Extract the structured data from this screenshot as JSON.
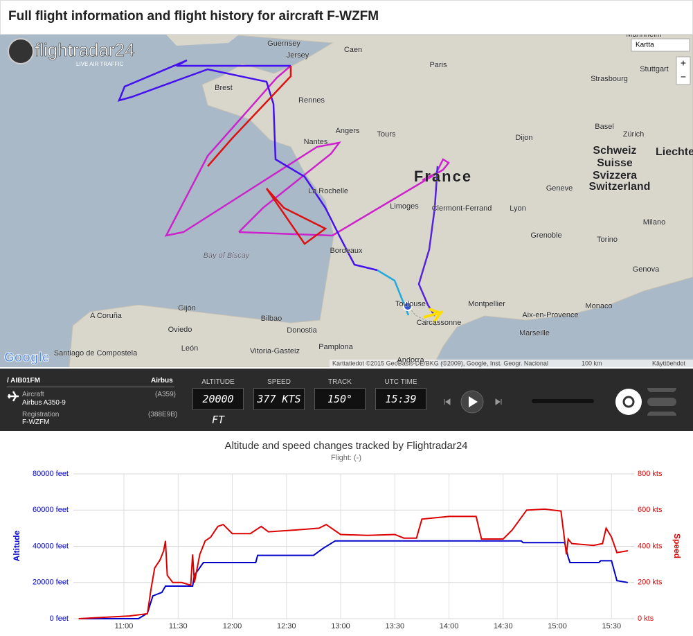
{
  "header": {
    "title": "Full flight information and flight history for aircraft F-WZFM"
  },
  "map": {
    "logo": "flightradar24",
    "logo_tagline": "LIVE AIR TRAFFIC",
    "map_type": "Kartta",
    "zoom_in": "+",
    "zoom_out": "−",
    "google": "Google",
    "attribution": "Karttatiedot ©2015 GeoBasis-DE/BKG (©2009), Google, Inst. Geogr. Nacional",
    "scale": "100 km",
    "terms": "Käyttöehdot",
    "labels": [
      "Guernsey",
      "Jersey",
      "Caen",
      "Paris",
      "Stuttgart",
      "Strasbourg",
      "Brest",
      "Rennes",
      "Angers",
      "Nantes",
      "Tours",
      "Dijon",
      "Basel",
      "Zürich",
      "Schweiz",
      "Suisse",
      "Svizzera",
      "Switzerland",
      "Liechte",
      "France",
      "Geneve",
      "La Rochelle",
      "Limoges",
      "Clermont-Ferrand",
      "Lyon",
      "Milano",
      "Grenoble",
      "Torino",
      "Bay of Biscay",
      "Bordeaux",
      "Genova",
      "Montpellier",
      "Monaco",
      "Gijón",
      "A Coruña",
      "Aix-en-Provence",
      "Bilbao",
      "Toulouse",
      "Carcassonne",
      "Oviedo",
      "Donostia",
      "Marseille",
      "Pamplona",
      "Santiago de Compostela",
      "León",
      "Vitoria-Gasteiz",
      "Andorra",
      "Mannheim"
    ]
  },
  "panel": {
    "callsign": "/ AIB01FM",
    "airline": "Airbus",
    "aircraft_label": "Aircraft",
    "aircraft_code": "(A359)",
    "aircraft": "Airbus A350-9",
    "registration_label": "Registration",
    "hex": "(388E9B)",
    "registration": "F-WZFM",
    "altitude_label": "ALTITUDE",
    "altitude": "20000 FT",
    "speed_label": "SPEED",
    "speed": "377 KTS",
    "track_label": "TRACK",
    "track": "150°",
    "time_label": "UTC TIME",
    "time": "15:39"
  },
  "chart_data": {
    "type": "line",
    "title": "Altitude and speed changes tracked by Flightradar24",
    "subtitle": "Flight: (-)",
    "ylabel": "Altitude",
    "y2label": "Speed",
    "xlim": [
      "10:32",
      "15:41"
    ],
    "xticks": [
      "11:00",
      "11:30",
      "12:00",
      "12:30",
      "13:00",
      "13:30",
      "14:00",
      "14:30",
      "15:00",
      "15:30"
    ],
    "ylim": [
      0,
      80000
    ],
    "yticks": [
      {
        "value": 0,
        "label": "0 feet"
      },
      {
        "value": 20000,
        "label": "20000 feet"
      },
      {
        "value": 40000,
        "label": "40000 feet"
      },
      {
        "value": 60000,
        "label": "60000 feet"
      },
      {
        "value": 80000,
        "label": "80000 feet"
      }
    ],
    "y2lim": [
      0,
      800
    ],
    "y2ticks": [
      {
        "value": 0,
        "label": "0 kts"
      },
      {
        "value": 200,
        "label": "200 kts"
      },
      {
        "value": 400,
        "label": "400 kts"
      },
      {
        "value": 600,
        "label": "600 kts"
      },
      {
        "value": 800,
        "label": "800 kts"
      }
    ],
    "grid": true,
    "series": [
      {
        "name": "Altitude",
        "color": "#0000cc",
        "x": [
          "10:35",
          "11:08",
          "11:13",
          "11:16",
          "11:21",
          "11:23",
          "11:38",
          "11:39",
          "11:44",
          "12:13",
          "12:14",
          "12:45",
          "12:50",
          "12:57",
          "14:40",
          "14:41",
          "15:04",
          "15:06",
          "15:07",
          "15:23",
          "15:24",
          "15:30",
          "15:33",
          "15:39"
        ],
        "values": [
          0,
          0,
          3000,
          12600,
          14500,
          18000,
          18000,
          24000,
          31000,
          31000,
          35000,
          35000,
          38700,
          43000,
          43000,
          42000,
          42000,
          34000,
          31000,
          31000,
          32000,
          32000,
          21000,
          20000
        ]
      },
      {
        "name": "Speed",
        "color": "#dd0000",
        "axis": "y2",
        "x": [
          "10:35",
          "11:03",
          "11:13",
          "11:15",
          "11:17",
          "11:20",
          "11:22",
          "11:23",
          "11:24",
          "11:27",
          "11:32",
          "11:37",
          "11:38",
          "11:39",
          "11:42",
          "11:45",
          "11:48",
          "11:52",
          "11:55",
          "12:00",
          "12:10",
          "12:16",
          "12:20",
          "12:35",
          "12:48",
          "12:52",
          "13:00",
          "13:15",
          "13:30",
          "13:35",
          "13:42",
          "13:45",
          "14:00",
          "14:15",
          "14:18",
          "14:30",
          "14:35",
          "14:43",
          "14:53",
          "15:02",
          "15:05",
          "15:06",
          "15:08",
          "15:20",
          "15:25",
          "15:27",
          "15:30",
          "15:33",
          "15:39"
        ],
        "values": [
          0,
          15,
          27,
          165,
          280,
          325,
          375,
          430,
          240,
          200,
          200,
          185,
          355,
          200,
          355,
          430,
          450,
          510,
          520,
          470,
          470,
          510,
          480,
          490,
          500,
          520,
          465,
          460,
          465,
          445,
          445,
          550,
          565,
          565,
          440,
          440,
          490,
          600,
          605,
          595,
          355,
          440,
          415,
          405,
          415,
          500,
          450,
          365,
          375
        ]
      }
    ]
  }
}
